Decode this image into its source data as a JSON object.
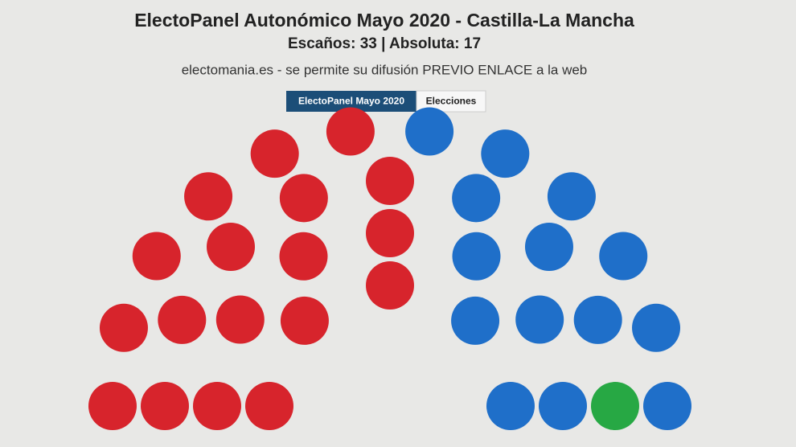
{
  "chart_data": {
    "type": "parliament",
    "title": "ElectoPanel Autonómico Mayo 2020 - Castilla-La Mancha",
    "subtitle": "Escaños: 33 | Absoluta: 17",
    "credit": "electomania.es - se permite su difusión PREVIO ENLACE a la web",
    "buttons": [
      "ElectoPanel Mayo 2020",
      "Elecciones"
    ],
    "series": [
      {
        "color": "#d7242c",
        "value": 18
      },
      {
        "color": "#1f6fc9",
        "value": 14
      },
      {
        "color": "#27a844",
        "value": 1
      }
    ]
  }
}
